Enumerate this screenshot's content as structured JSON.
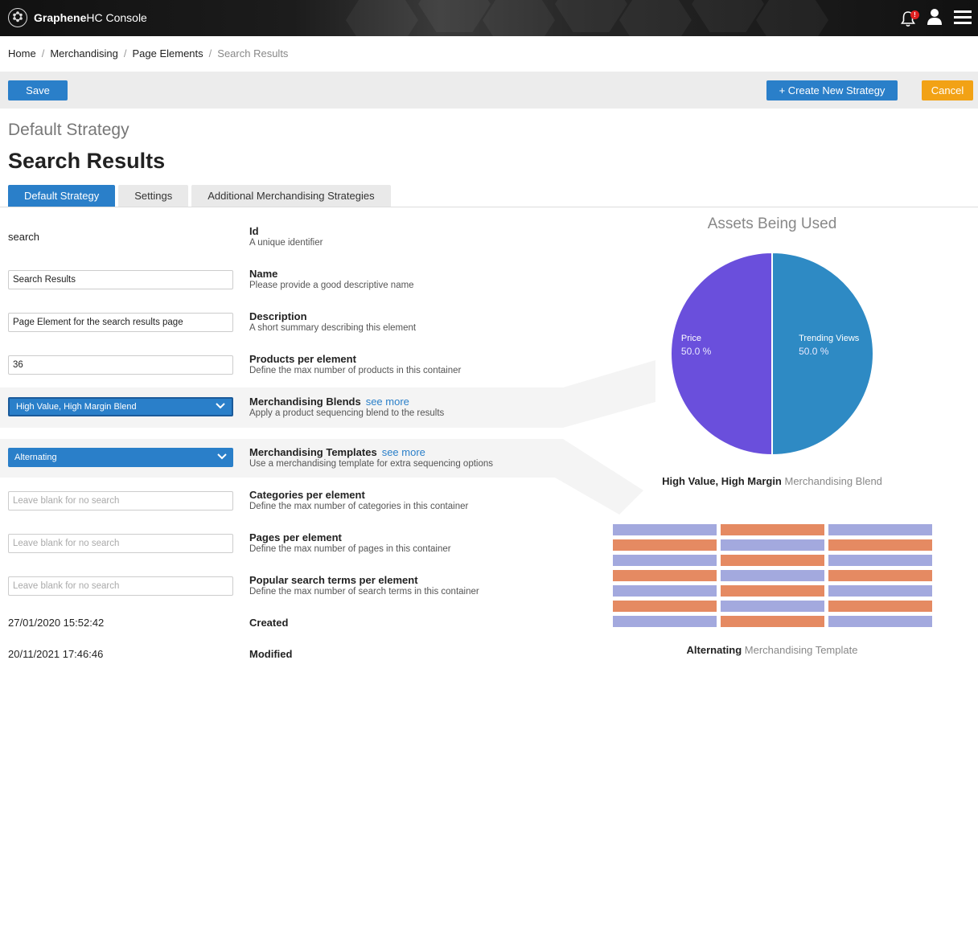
{
  "app": {
    "brand_bold": "Graphene",
    "brand_rest": "HC Console",
    "notification_count": "!"
  },
  "breadcrumb": {
    "items": [
      "Home",
      "Merchandising",
      "Page Elements"
    ],
    "current": "Search Results"
  },
  "toolbar": {
    "save_label": "Save",
    "create_label": "+ Create New Strategy",
    "cancel_label": "Cancel"
  },
  "page": {
    "subtitle": "Default Strategy",
    "title": "Search Results"
  },
  "tabs": [
    {
      "label": "Default Strategy",
      "active": true
    },
    {
      "label": "Settings",
      "active": false
    },
    {
      "label": "Additional Merchandising Strategies",
      "active": false
    }
  ],
  "form": {
    "id": {
      "value": "search",
      "label": "Id",
      "help": "A unique identifier"
    },
    "name": {
      "value": "Search Results",
      "label": "Name",
      "help": "Please provide a good descriptive name"
    },
    "description": {
      "value": "Page Element for the search results page",
      "label": "Description",
      "help": "A short summary describing this element"
    },
    "products": {
      "value": "36",
      "label": "Products per element",
      "help": "Define the max number of products in this container"
    },
    "blends": {
      "value": "High Value, High Margin Blend",
      "label": "Merchandising Blends",
      "more": "see more",
      "help": "Apply a product sequencing blend to the results"
    },
    "templates": {
      "value": "Alternating",
      "label": "Merchandising Templates",
      "more": "see more",
      "help": "Use a merchandising template for extra sequencing options"
    },
    "categories": {
      "placeholder": "Leave blank for no search",
      "label": "Categories per element",
      "help": "Define the max number of categories in this container"
    },
    "pages": {
      "placeholder": "Leave blank for no search",
      "label": "Pages per element",
      "help": "Define the max number of pages in this container"
    },
    "popular": {
      "placeholder": "Leave blank for no search",
      "label": "Popular search terms per element",
      "help": "Define the max number of search terms in this container"
    },
    "created": {
      "value": "27/01/2020 15:52:42",
      "label": "Created"
    },
    "modified": {
      "value": "20/11/2021 17:46:46",
      "label": "Modified"
    }
  },
  "assets": {
    "title": "Assets Being Used",
    "blend_name": "High Value, High Margin",
    "blend_suffix": "Merchandising Blend",
    "template_name": "Alternating",
    "template_suffix": "Merchandising Template"
  },
  "chart_data": {
    "type": "pie",
    "title": "Assets Being Used",
    "slices": [
      {
        "name": "Price",
        "value": 50.0,
        "label": "50.0 %",
        "color": "#6a4fdc"
      },
      {
        "name": "Trending Views",
        "value": 50.0,
        "label": "50.0 %",
        "color": "#2e8ac4"
      }
    ]
  },
  "template_grid": {
    "rows": 7,
    "cols": 3,
    "colors": [
      "#a3a9de",
      "#e58a62"
    ]
  },
  "colors": {
    "primary": "#2a7fc9",
    "cancel": "#f2a215",
    "badge": "#e02020"
  }
}
